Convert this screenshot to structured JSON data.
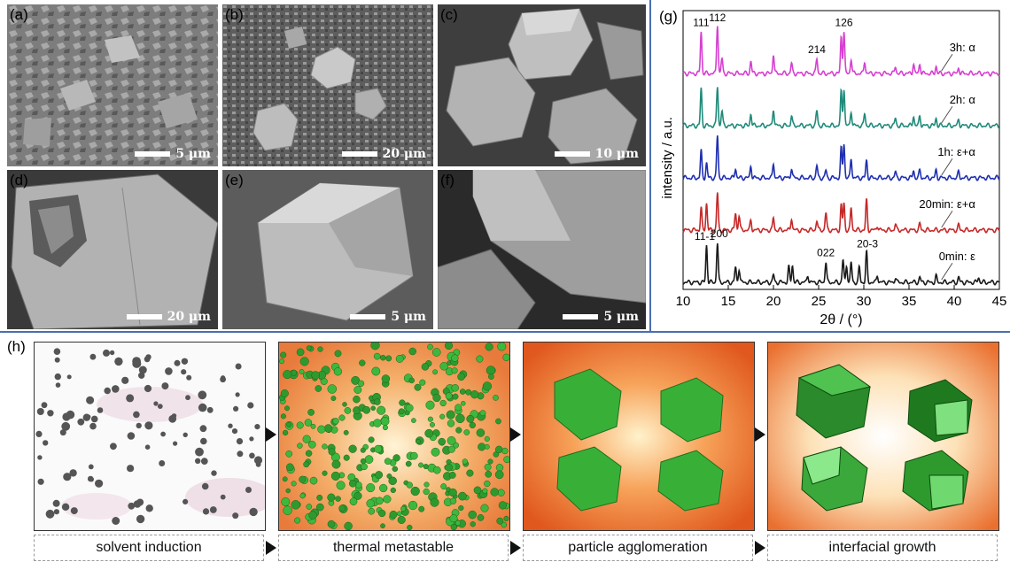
{
  "sem_panels": [
    {
      "label": "(a)",
      "scale": "5 μm"
    },
    {
      "label": "(b)",
      "scale": "20 μm"
    },
    {
      "label": "(c)",
      "scale": "10 μm"
    },
    {
      "label": "(d)",
      "scale": "20 μm"
    },
    {
      "label": "(e)",
      "scale": "5 μm"
    },
    {
      "label": "(f)",
      "scale": "5 μm"
    }
  ],
  "chart_data": {
    "type": "line",
    "panel_label": "(g)",
    "xlabel": "2θ / (°)",
    "ylabel": "intensity / a.u.",
    "xlim": [
      10,
      45
    ],
    "xticks": [
      10,
      15,
      20,
      25,
      30,
      35,
      40,
      45
    ],
    "grid": false,
    "series": [
      {
        "name": "0min: ε",
        "color": "#1a1a1a",
        "offset": 0,
        "peaks": [
          [
            12.6,
            0.75
          ],
          [
            13.8,
            0.8
          ],
          [
            15.8,
            0.3
          ],
          [
            16.2,
            0.28
          ],
          [
            20.0,
            0.15
          ],
          [
            21.7,
            0.3
          ],
          [
            22.1,
            0.35
          ],
          [
            23.8,
            0.15
          ],
          [
            25.8,
            0.42
          ],
          [
            27.7,
            0.45
          ],
          [
            28.1,
            0.35
          ],
          [
            28.6,
            0.4
          ],
          [
            29.5,
            0.3
          ],
          [
            30.3,
            0.6
          ],
          [
            31.5,
            0.15
          ],
          [
            33.5,
            0.1
          ],
          [
            36.2,
            0.1
          ],
          [
            38.0,
            0.12
          ],
          [
            40.5,
            0.1
          ],
          [
            42.7,
            0.1
          ]
        ]
      },
      {
        "name": "20min: ε+α",
        "color": "#c62828",
        "offset": 1,
        "peaks": [
          [
            12.0,
            0.45
          ],
          [
            12.6,
            0.55
          ],
          [
            13.8,
            0.75
          ],
          [
            15.8,
            0.35
          ],
          [
            16.2,
            0.3
          ],
          [
            17.5,
            0.2
          ],
          [
            20.0,
            0.25
          ],
          [
            22.0,
            0.25
          ],
          [
            24.8,
            0.2
          ],
          [
            25.8,
            0.35
          ],
          [
            27.5,
            0.5
          ],
          [
            27.8,
            0.55
          ],
          [
            28.6,
            0.45
          ],
          [
            30.3,
            0.6
          ],
          [
            31.5,
            0.1
          ],
          [
            33.5,
            0.12
          ],
          [
            36.2,
            0.12
          ],
          [
            40.5,
            0.1
          ]
        ]
      },
      {
        "name": "1h: ε+α",
        "color": "#1f2fb0",
        "offset": 2,
        "peaks": [
          [
            12.0,
            0.55
          ],
          [
            12.6,
            0.3
          ],
          [
            13.8,
            0.85
          ],
          [
            15.8,
            0.2
          ],
          [
            17.5,
            0.25
          ],
          [
            20.0,
            0.3
          ],
          [
            22.0,
            0.2
          ],
          [
            24.8,
            0.25
          ],
          [
            25.8,
            0.15
          ],
          [
            27.5,
            0.6
          ],
          [
            27.8,
            0.7
          ],
          [
            28.6,
            0.4
          ],
          [
            30.3,
            0.35
          ],
          [
            33.5,
            0.12
          ],
          [
            35.5,
            0.15
          ],
          [
            36.2,
            0.15
          ],
          [
            38.0,
            0.15
          ],
          [
            40.5,
            0.12
          ]
        ]
      },
      {
        "name": "2h: α",
        "color": "#1f8a7a",
        "offset": 3,
        "peaks": [
          [
            12.0,
            0.75
          ],
          [
            13.8,
            0.8
          ],
          [
            14.3,
            0.3
          ],
          [
            17.5,
            0.25
          ],
          [
            20.0,
            0.35
          ],
          [
            22.0,
            0.2
          ],
          [
            24.8,
            0.3
          ],
          [
            27.5,
            0.7
          ],
          [
            27.8,
            0.75
          ],
          [
            28.6,
            0.3
          ],
          [
            30.1,
            0.25
          ],
          [
            33.5,
            0.15
          ],
          [
            35.5,
            0.2
          ],
          [
            36.2,
            0.2
          ],
          [
            38.0,
            0.15
          ],
          [
            40.5,
            0.12
          ]
        ]
      },
      {
        "name": "3h: α",
        "color": "#d63fd1",
        "offset": 4,
        "peaks": [
          [
            12.0,
            0.85
          ],
          [
            13.8,
            1.0
          ],
          [
            14.3,
            0.3
          ],
          [
            17.5,
            0.25
          ],
          [
            20.0,
            0.4
          ],
          [
            22.0,
            0.2
          ],
          [
            24.8,
            0.3
          ],
          [
            27.5,
            0.75
          ],
          [
            27.8,
            0.85
          ],
          [
            28.6,
            0.3
          ],
          [
            30.1,
            0.25
          ],
          [
            33.5,
            0.15
          ],
          [
            35.5,
            0.2
          ],
          [
            36.2,
            0.2
          ],
          [
            38.0,
            0.15
          ],
          [
            40.5,
            0.12
          ]
        ]
      }
    ],
    "annotations": [
      {
        "text": "111",
        "x": 12.0,
        "series": 4
      },
      {
        "text": "112",
        "x": 13.8,
        "series": 4
      },
      {
        "text": "214",
        "x": 24.8,
        "series": 4
      },
      {
        "text": "126",
        "x": 27.8,
        "series": 4
      },
      {
        "text": "11-1",
        "x": 12.4,
        "series": 0
      },
      {
        "text": "200",
        "x": 14.0,
        "series": 0
      },
      {
        "text": "022",
        "x": 25.8,
        "series": 0
      },
      {
        "text": "20-3",
        "x": 30.4,
        "series": 0
      }
    ]
  },
  "process": {
    "label": "(h)",
    "steps": [
      {
        "caption": "solvent induction"
      },
      {
        "caption": "thermal metastable"
      },
      {
        "caption": "particle agglomeration"
      },
      {
        "caption": "interfacial growth"
      }
    ],
    "colors": {
      "crystal": "#2e9a2e",
      "crystal_light": "#5fd35f",
      "heat": "#e85a1a",
      "particle": "#555555"
    }
  }
}
